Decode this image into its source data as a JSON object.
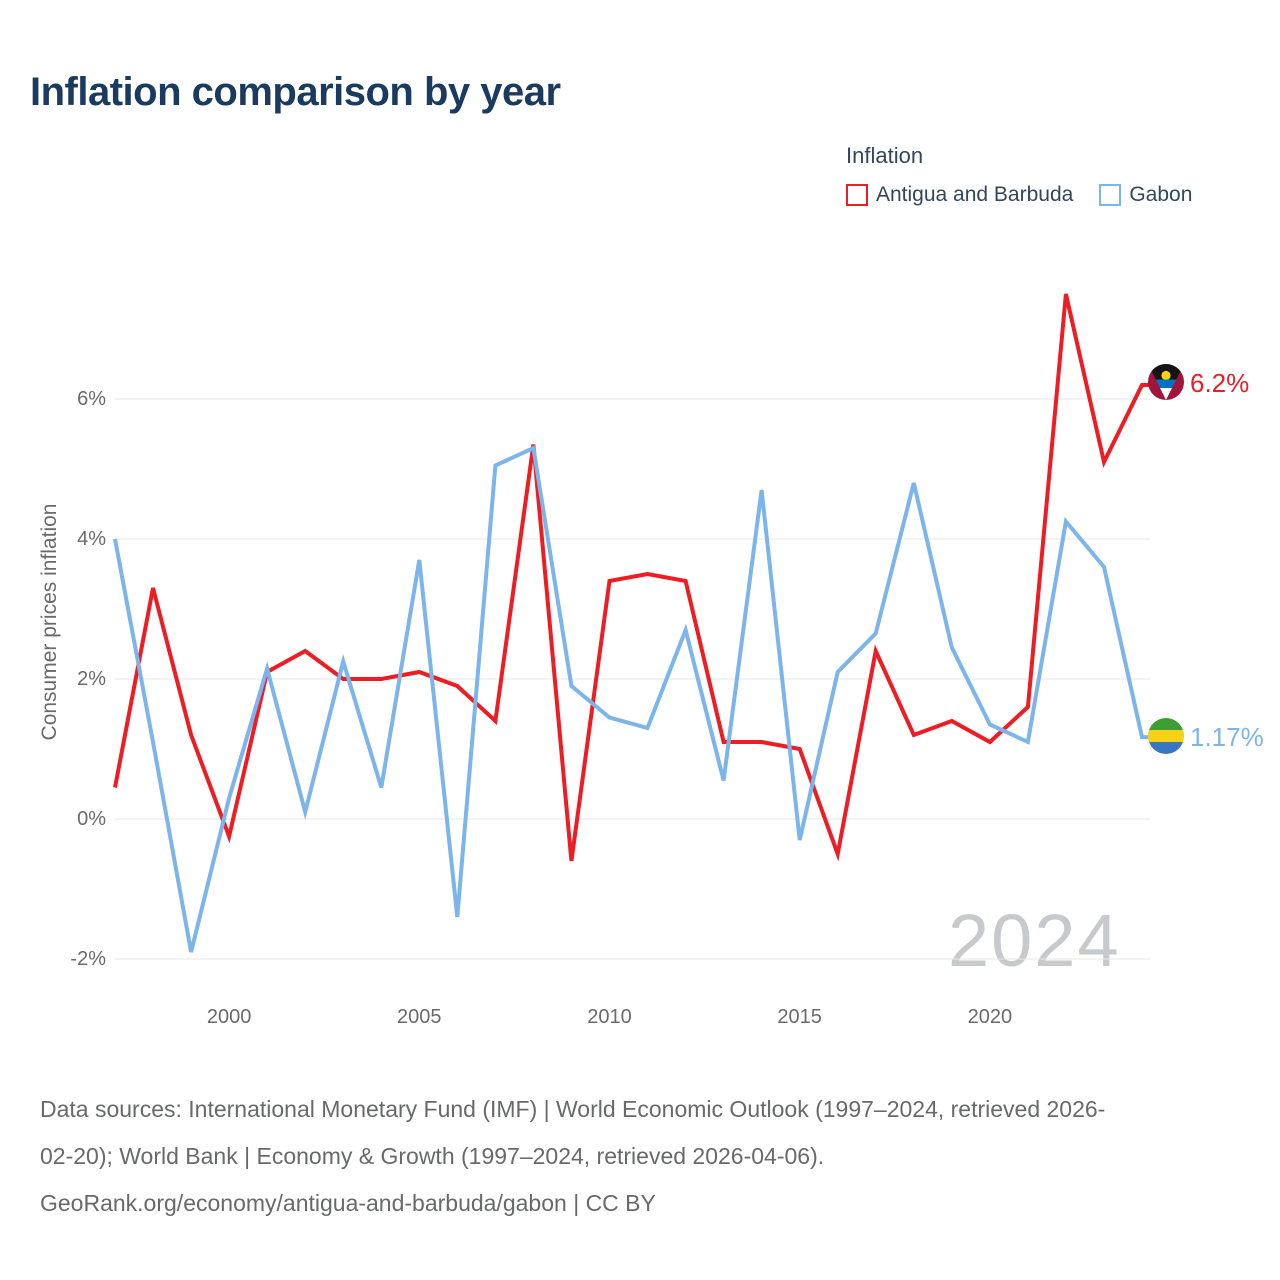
{
  "title": "Inflation comparison by year",
  "legend": {
    "title": "Inflation",
    "items": [
      {
        "label": "Antigua and Barbuda",
        "color": "#ee1c23"
      },
      {
        "label": "Gabon",
        "color": "#7cb5ec"
      }
    ]
  },
  "watermark": "2024",
  "end_labels": [
    {
      "series": "Antigua and Barbuda",
      "value": "6.2%",
      "color": "#ee1c23",
      "flag": "antigua-and-barbuda-flag"
    },
    {
      "series": "Gabon",
      "value": "1.17%",
      "color": "#7cb5ec",
      "flag": "gabon-flag"
    }
  ],
  "footer": {
    "lines": [
      "Data sources: International Monetary Fund (IMF) | World Economic Outlook (1997–2024, retrieved 2026-",
      "02-20); World Bank | Economy & Growth (1997–2024, retrieved 2026-04-06).",
      "GeoRank.org/economy/antigua-and-barbuda/gabon | CC BY"
    ]
  },
  "chart_data": {
    "type": "line",
    "title": "Inflation comparison by year",
    "xlabel": "",
    "ylabel": "Consumer prices inflation",
    "grid": "horizontal",
    "legend_position": "top-right",
    "xlim": [
      1997,
      2024
    ],
    "ylim": [
      -2.9,
      7.7
    ],
    "x": [
      1997,
      1998,
      1999,
      2000,
      2001,
      2002,
      2003,
      2004,
      2005,
      2006,
      2007,
      2008,
      2009,
      2010,
      2011,
      2012,
      2013,
      2014,
      2015,
      2016,
      2017,
      2018,
      2019,
      2020,
      2021,
      2022,
      2023,
      2024
    ],
    "series": [
      {
        "name": "Antigua and Barbuda",
        "color": "#ee1c23",
        "values": [
          0.45,
          3.3,
          1.2,
          -0.25,
          2.1,
          2.4,
          2.0,
          2.0,
          2.1,
          1.9,
          1.4,
          5.35,
          -0.6,
          3.4,
          3.5,
          3.4,
          1.1,
          1.1,
          1.0,
          -0.5,
          2.4,
          1.2,
          1.4,
          1.1,
          1.6,
          7.5,
          5.1,
          6.2
        ]
      },
      {
        "name": "Gabon",
        "color": "#7cb5ec",
        "values": [
          4.0,
          1.1,
          -1.9,
          0.3,
          2.15,
          0.1,
          2.25,
          0.45,
          3.7,
          -1.4,
          5.05,
          5.3,
          1.9,
          1.45,
          1.3,
          2.7,
          0.55,
          4.7,
          -0.3,
          2.1,
          2.65,
          4.8,
          2.45,
          1.35,
          1.1,
          4.25,
          3.6,
          1.17
        ]
      }
    ],
    "y_ticks": [
      {
        "value": 6,
        "label": "6%"
      },
      {
        "value": 4,
        "label": "4%"
      },
      {
        "value": 2,
        "label": "2%"
      },
      {
        "value": 0,
        "label": "0%"
      },
      {
        "value": -2,
        "label": "-2%"
      }
    ],
    "x_ticks": [
      {
        "value": 2000,
        "label": "2000"
      },
      {
        "value": 2005,
        "label": "2005"
      },
      {
        "value": 2010,
        "label": "2010"
      },
      {
        "value": 2015,
        "label": "2015"
      },
      {
        "value": 2020,
        "label": "2020"
      }
    ],
    "end_point_labels": {
      "Antigua and Barbuda": "6.2%",
      "Gabon": "1.17%"
    }
  }
}
